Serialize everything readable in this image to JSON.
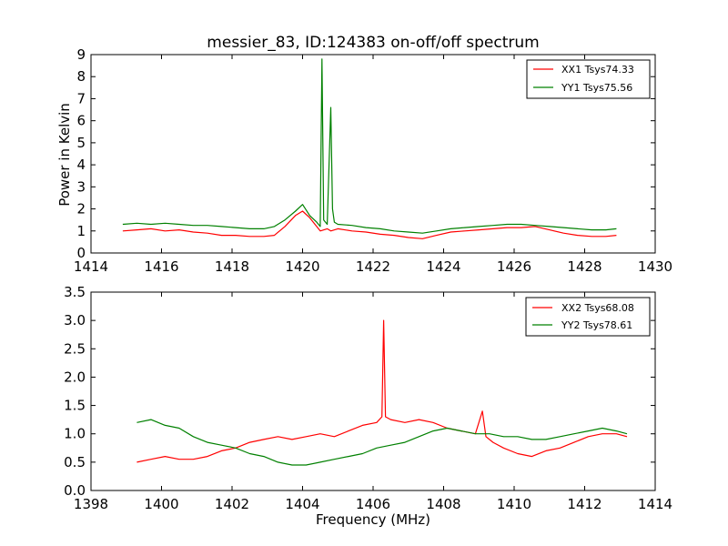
{
  "chart_data": [
    {
      "type": "line",
      "title": "messier_83, ID:124383 on-off/off spectrum",
      "xlabel": "",
      "ylabel": "Power in Kelvin",
      "xlim": [
        1414,
        1430
      ],
      "ylim": [
        0,
        9
      ],
      "xticks": [
        "1414",
        "1416",
        "1418",
        "1420",
        "1422",
        "1424",
        "1426",
        "1428",
        "1430"
      ],
      "yticks": [
        "0",
        "1",
        "2",
        "3",
        "4",
        "5",
        "6",
        "7",
        "8",
        "9"
      ],
      "legend_position": "top-right",
      "grid": false,
      "series": [
        {
          "name": "XX1 Tsys74.33",
          "color": "#ff0000",
          "x": [
            1414.9,
            1415.3,
            1415.7,
            1416.1,
            1416.5,
            1416.9,
            1417.3,
            1417.7,
            1418.1,
            1418.5,
            1418.9,
            1419.2,
            1419.5,
            1419.8,
            1420.0,
            1420.2,
            1420.4,
            1420.5,
            1420.7,
            1420.8,
            1421.0,
            1421.4,
            1421.8,
            1422.2,
            1422.6,
            1423.0,
            1423.4,
            1423.8,
            1424.2,
            1424.6,
            1425.0,
            1425.4,
            1425.8,
            1426.2,
            1426.6,
            1427.0,
            1427.4,
            1427.8,
            1428.2,
            1428.6,
            1428.9
          ],
          "values": [
            1.0,
            1.05,
            1.1,
            1.0,
            1.05,
            0.95,
            0.9,
            0.8,
            0.8,
            0.75,
            0.75,
            0.8,
            1.2,
            1.7,
            1.9,
            1.6,
            1.2,
            1.0,
            1.1,
            1.0,
            1.1,
            1.0,
            0.95,
            0.85,
            0.8,
            0.7,
            0.65,
            0.8,
            0.95,
            1.0,
            1.05,
            1.1,
            1.15,
            1.15,
            1.2,
            1.05,
            0.9,
            0.8,
            0.75,
            0.75,
            0.8
          ]
        },
        {
          "name": "YY1 Tsys75.56",
          "color": "#008000",
          "x": [
            1414.9,
            1415.3,
            1415.7,
            1416.1,
            1416.5,
            1416.9,
            1417.3,
            1417.7,
            1418.1,
            1418.5,
            1418.9,
            1419.2,
            1419.5,
            1419.8,
            1420.0,
            1420.2,
            1420.4,
            1420.5,
            1420.55,
            1420.6,
            1420.7,
            1420.8,
            1420.85,
            1420.9,
            1421.0,
            1421.4,
            1421.8,
            1422.2,
            1422.6,
            1423.0,
            1423.4,
            1423.8,
            1424.2,
            1424.6,
            1425.0,
            1425.4,
            1425.8,
            1426.2,
            1426.6,
            1427.0,
            1427.4,
            1427.8,
            1428.2,
            1428.6,
            1428.9
          ],
          "values": [
            1.3,
            1.35,
            1.3,
            1.35,
            1.3,
            1.25,
            1.25,
            1.2,
            1.15,
            1.1,
            1.1,
            1.2,
            1.5,
            1.9,
            2.2,
            1.7,
            1.4,
            1.2,
            8.8,
            1.5,
            1.3,
            6.6,
            2.0,
            1.4,
            1.3,
            1.25,
            1.15,
            1.1,
            1.0,
            0.95,
            0.9,
            1.0,
            1.1,
            1.15,
            1.2,
            1.25,
            1.3,
            1.3,
            1.25,
            1.2,
            1.15,
            1.1,
            1.05,
            1.05,
            1.1
          ]
        }
      ]
    },
    {
      "type": "line",
      "title": "",
      "xlabel": "Frequency (MHz)",
      "ylabel": "",
      "xlim": [
        1398,
        1414
      ],
      "ylim": [
        0,
        3.5
      ],
      "xticks": [
        "1398",
        "1400",
        "1402",
        "1404",
        "1406",
        "1408",
        "1410",
        "1412",
        "1414"
      ],
      "yticks": [
        "0.0",
        "0.5",
        "1.0",
        "1.5",
        "2.0",
        "2.5",
        "3.0",
        "3.5"
      ],
      "legend_position": "top-right",
      "grid": false,
      "series": [
        {
          "name": "XX2 Tsys68.08",
          "color": "#ff0000",
          "x": [
            1399.3,
            1399.7,
            1400.1,
            1400.5,
            1400.9,
            1401.3,
            1401.7,
            1402.1,
            1402.5,
            1402.9,
            1403.3,
            1403.7,
            1404.1,
            1404.5,
            1404.9,
            1405.3,
            1405.7,
            1406.1,
            1406.25,
            1406.3,
            1406.35,
            1406.5,
            1406.9,
            1407.3,
            1407.7,
            1408.1,
            1408.5,
            1408.9,
            1409.1,
            1409.2,
            1409.4,
            1409.7,
            1410.1,
            1410.5,
            1410.9,
            1411.3,
            1411.7,
            1412.1,
            1412.5,
            1412.9,
            1413.2
          ],
          "values": [
            0.5,
            0.55,
            0.6,
            0.55,
            0.55,
            0.6,
            0.7,
            0.75,
            0.85,
            0.9,
            0.95,
            0.9,
            0.95,
            1.0,
            0.95,
            1.05,
            1.15,
            1.2,
            1.3,
            3.0,
            1.3,
            1.25,
            1.2,
            1.25,
            1.2,
            1.1,
            1.05,
            1.0,
            1.4,
            0.95,
            0.85,
            0.75,
            0.65,
            0.6,
            0.7,
            0.75,
            0.85,
            0.95,
            1.0,
            1.0,
            0.95
          ]
        },
        {
          "name": "YY2 Tsys78.61",
          "color": "#008000",
          "x": [
            1399.3,
            1399.7,
            1400.1,
            1400.5,
            1400.9,
            1401.3,
            1401.7,
            1402.1,
            1402.5,
            1402.9,
            1403.3,
            1403.7,
            1404.1,
            1404.5,
            1404.9,
            1405.3,
            1405.7,
            1406.1,
            1406.5,
            1406.9,
            1407.3,
            1407.7,
            1408.1,
            1408.5,
            1408.9,
            1409.3,
            1409.7,
            1410.1,
            1410.5,
            1410.9,
            1411.3,
            1411.7,
            1412.1,
            1412.5,
            1412.9,
            1413.2
          ],
          "values": [
            1.2,
            1.25,
            1.15,
            1.1,
            0.95,
            0.85,
            0.8,
            0.75,
            0.65,
            0.6,
            0.5,
            0.45,
            0.45,
            0.5,
            0.55,
            0.6,
            0.65,
            0.75,
            0.8,
            0.85,
            0.95,
            1.05,
            1.1,
            1.05,
            1.0,
            1.0,
            0.95,
            0.95,
            0.9,
            0.9,
            0.95,
            1.0,
            1.05,
            1.1,
            1.05,
            1.0
          ]
        }
      ]
    }
  ]
}
